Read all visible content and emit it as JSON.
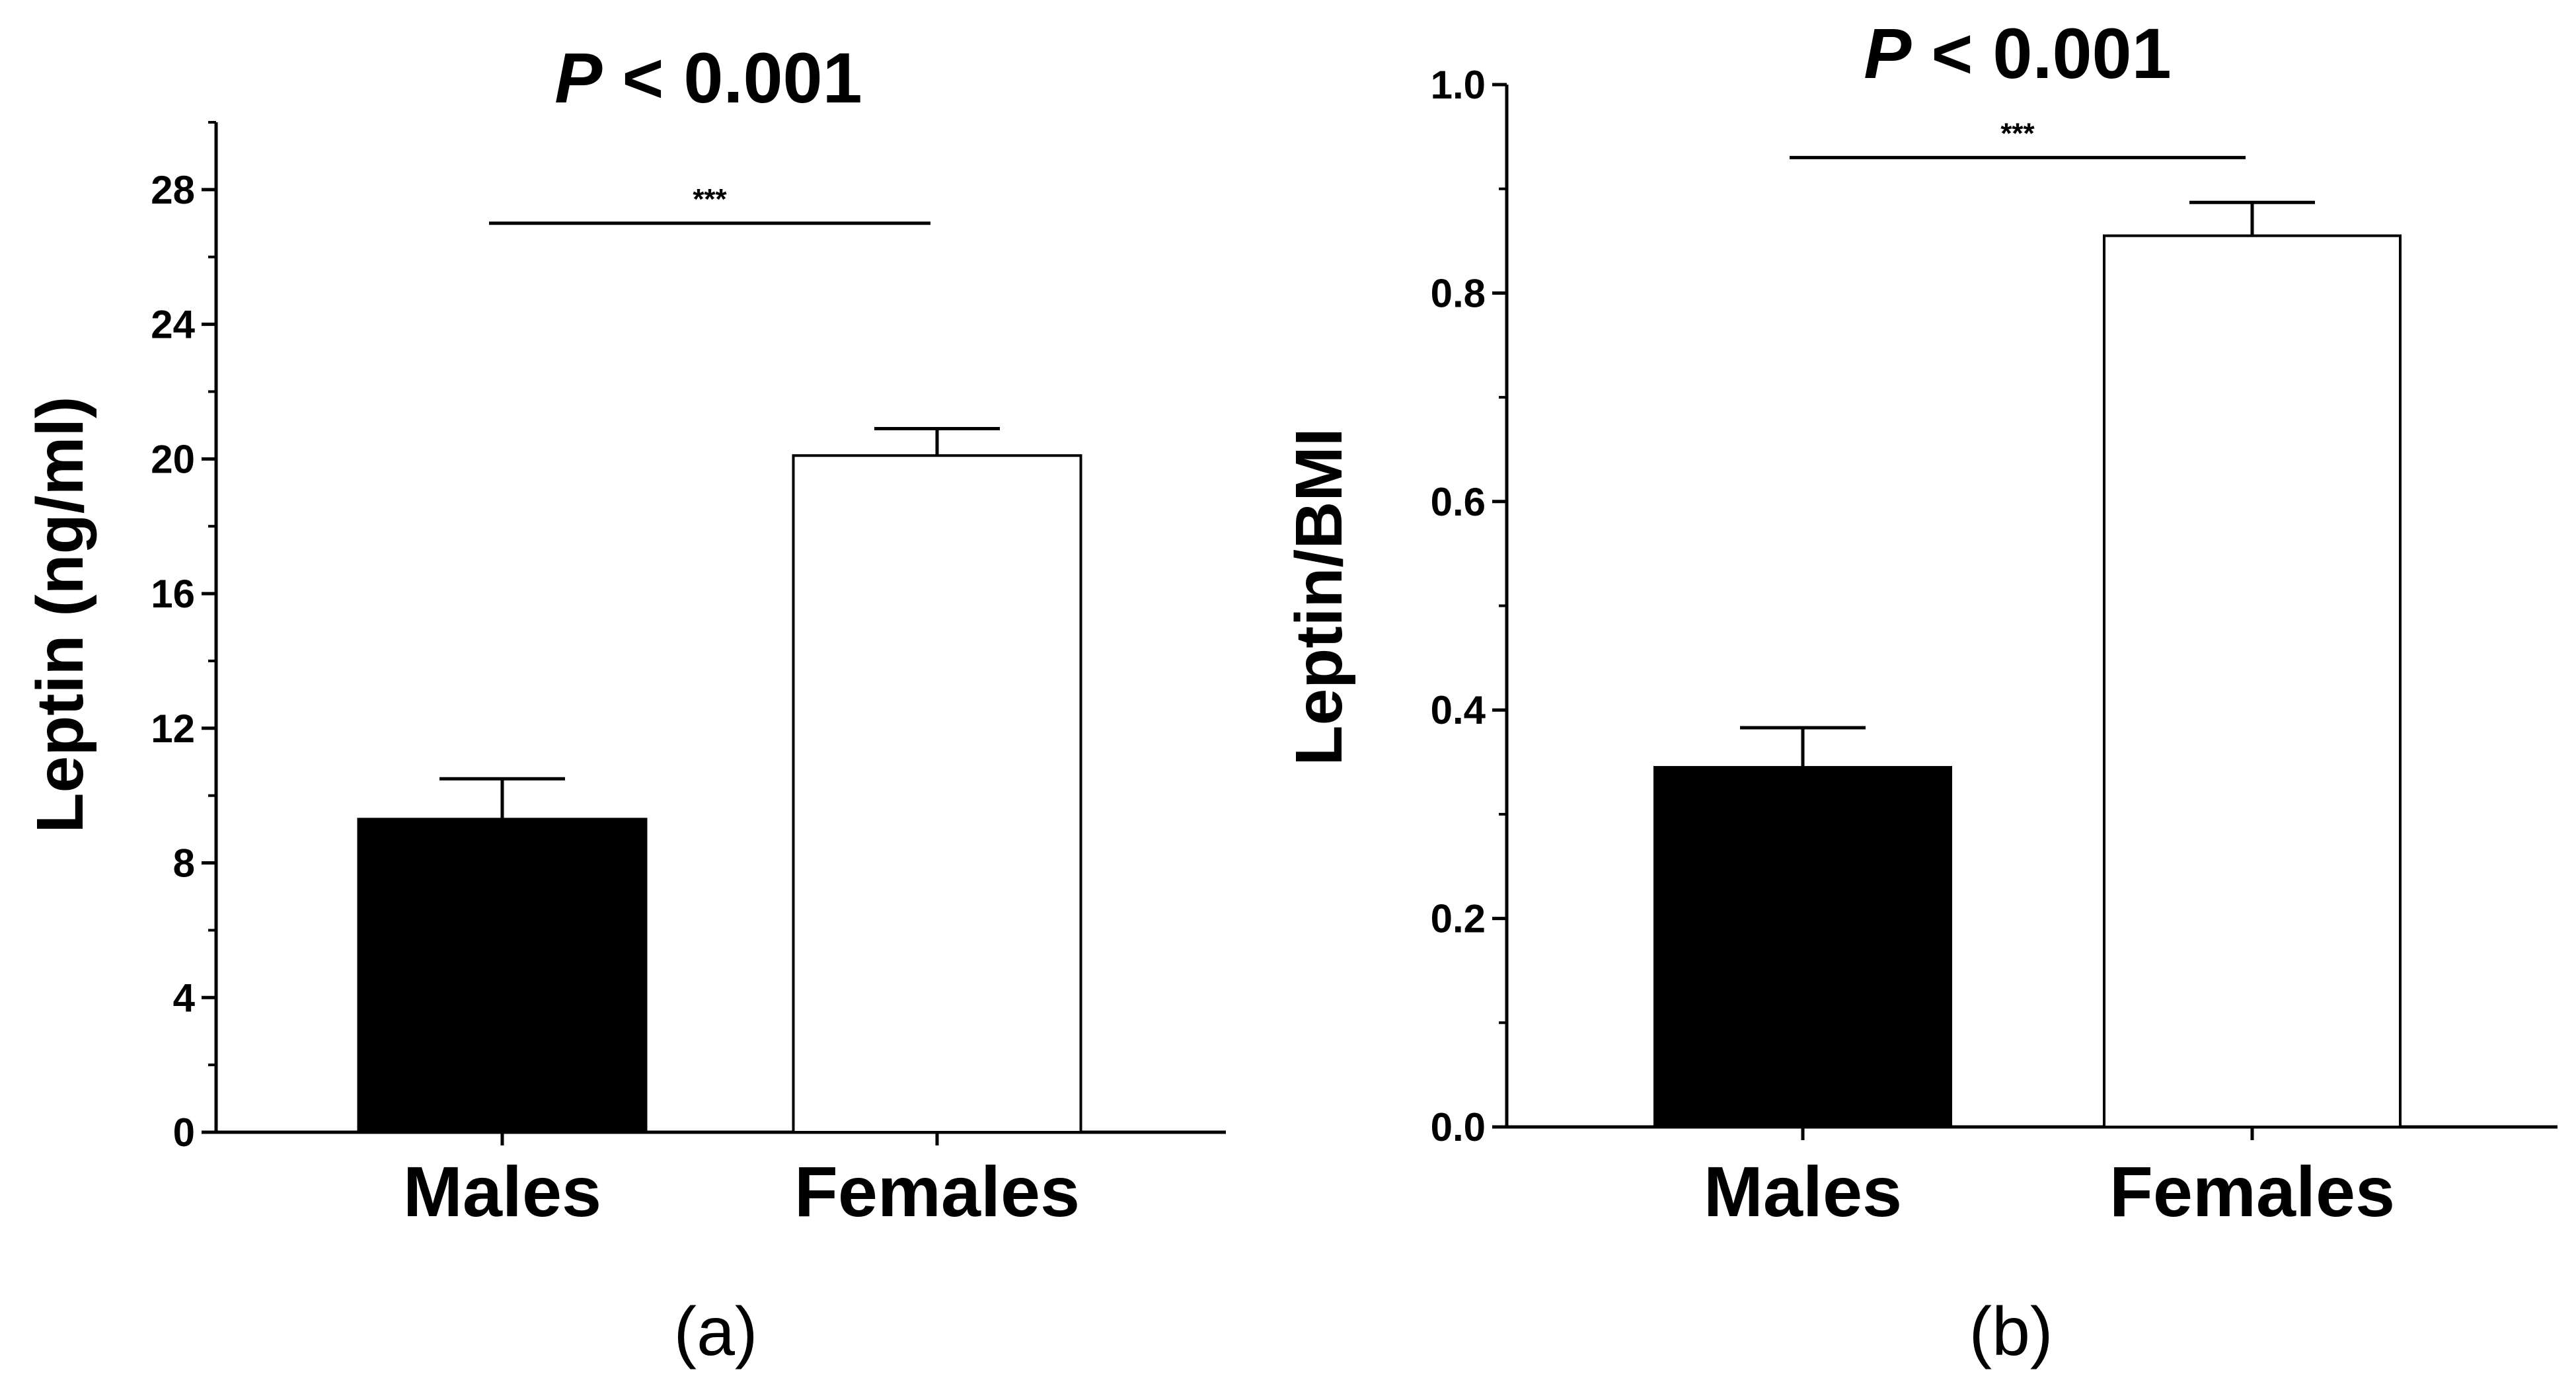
{
  "chart_data": [
    {
      "type": "bar",
      "panel_label": "(a)",
      "title_var": "P",
      "title_rest": " < 0.001",
      "ylabel": "Leptin (ng/ml)",
      "xlabel": "",
      "categories": [
        "Males",
        "Females"
      ],
      "values": [
        9.3,
        20.1
      ],
      "error_upper": [
        10.5,
        20.9
      ],
      "ylim": [
        0,
        30
      ],
      "yticks": [
        "0",
        "4",
        "8",
        "12",
        "16",
        "20",
        "24",
        "28"
      ],
      "significance": {
        "from": 0,
        "to": 1,
        "label": "***",
        "y": 27
      },
      "bar_colors": [
        "#000000",
        "#ffffff"
      ]
    },
    {
      "type": "bar",
      "panel_label": "(b)",
      "title_var": "P",
      "title_rest": " < 0.001",
      "ylabel": "Leptin/BMI",
      "xlabel": "",
      "categories": [
        "Males",
        "Females"
      ],
      "values": [
        0.345,
        0.855
      ],
      "error_upper": [
        0.383,
        0.887
      ],
      "ylim": [
        0,
        1.0
      ],
      "yticks": [
        "0.0",
        "0.2",
        "0.4",
        "0.6",
        "0.8",
        "1.0"
      ],
      "significance": {
        "from": 0,
        "to": 1,
        "label": "***",
        "y": 0.93
      },
      "bar_colors": [
        "#000000",
        "#ffffff"
      ]
    }
  ]
}
